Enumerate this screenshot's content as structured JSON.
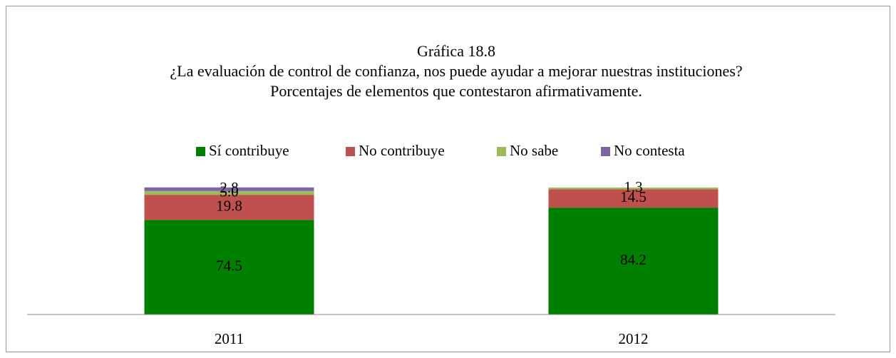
{
  "chart_data": {
    "type": "stacked_bar",
    "title": "Gráfica 18.8",
    "subtitle": [
      "¿La evaluación de control de confianza, nos puede ayudar a mejorar nuestras instituciones?",
      "Porcentajes de elementos que contestaron afirmativamente."
    ],
    "categories": [
      "2011",
      "2012"
    ],
    "series": [
      {
        "name": "Sí contribuye",
        "color": "#008000",
        "values": [
          74.5,
          84.2
        ]
      },
      {
        "name": "No contribuye",
        "color": "#c0504d",
        "values": [
          19.8,
          14.5
        ]
      },
      {
        "name": "No sabe",
        "color": "#9bbb59",
        "values": [
          3.0,
          1.3
        ],
        "value_labels": [
          "3.0",
          "1.3"
        ]
      },
      {
        "name": "No contesta",
        "color": "#8064a2",
        "values": [
          2.8,
          null
        ]
      }
    ],
    "ylim": [
      0,
      100
    ],
    "legend": "top"
  }
}
